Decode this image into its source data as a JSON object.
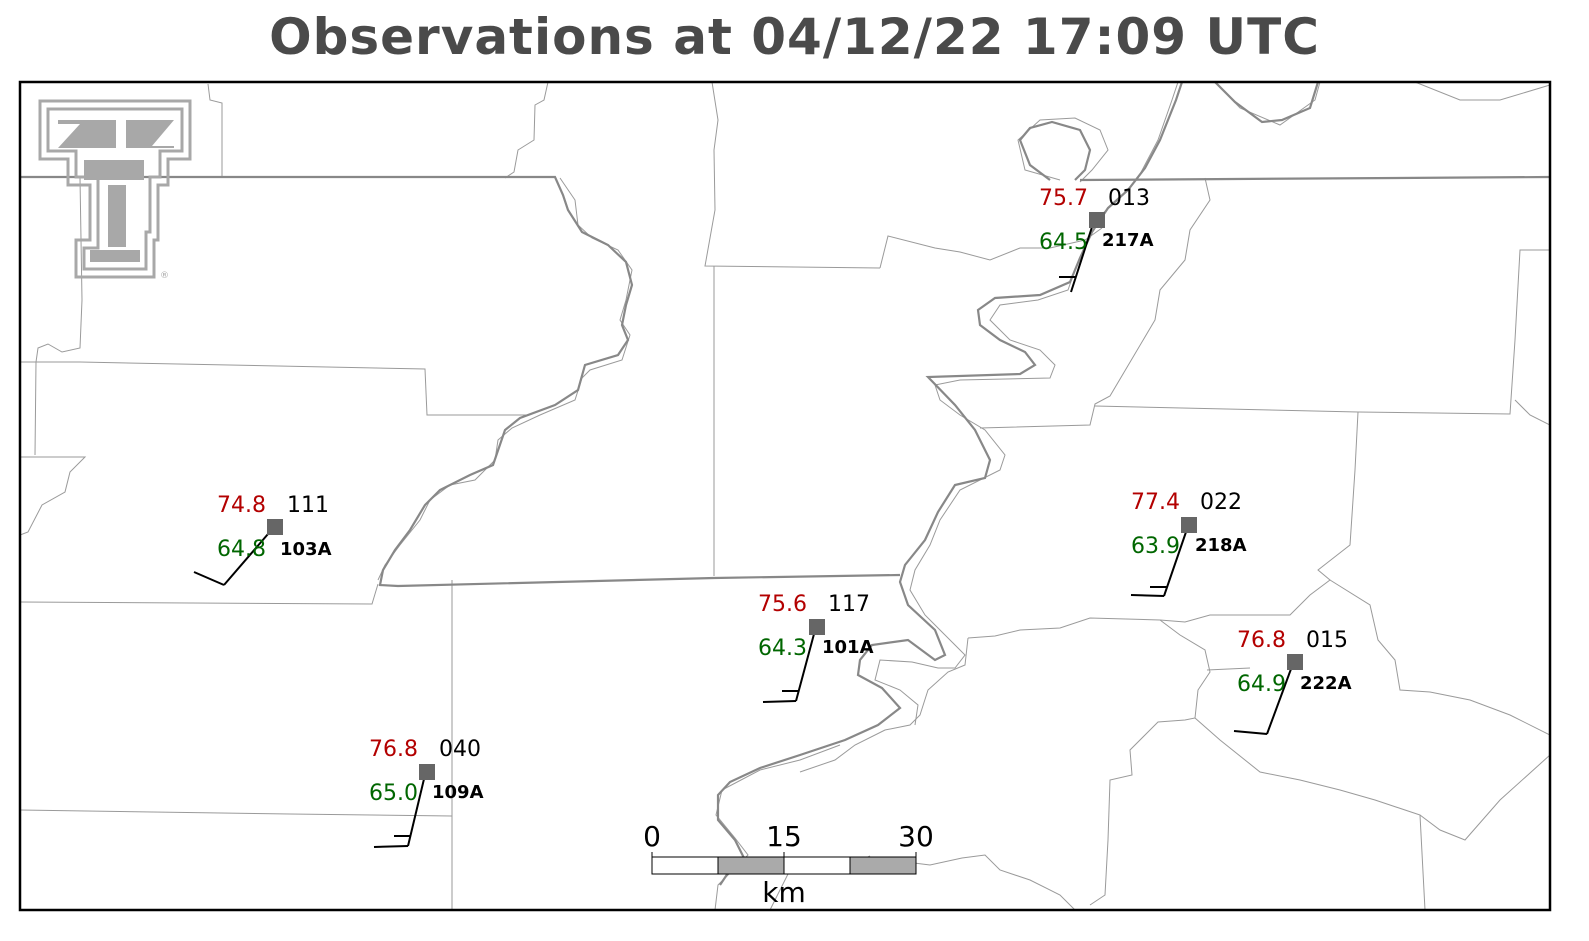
{
  "title": "Observations at 04/12/22 17:09 UTC",
  "colors": {
    "temperature": "#b30000",
    "dewpoint": "#006600",
    "station": "#666666",
    "border": "#000000",
    "title": "#4a4a4a",
    "counties": "#999999",
    "states": "#888888"
  },
  "logo": {
    "icon": "double-t-logo-icon",
    "mark": "®"
  },
  "scalebar": {
    "ticks": [
      "0",
      "15",
      "30"
    ],
    "unit": "km"
  },
  "stations": [
    {
      "id": "103A",
      "temp": "74.8",
      "dewpoint": "64.8",
      "pressure": "111"
    },
    {
      "id": "217A",
      "temp": "75.7",
      "dewpoint": "64.5",
      "pressure": "013"
    },
    {
      "id": "218A",
      "temp": "77.4",
      "dewpoint": "63.9",
      "pressure": "022"
    },
    {
      "id": "101A",
      "temp": "75.6",
      "dewpoint": "64.3",
      "pressure": "117"
    },
    {
      "id": "222A",
      "temp": "76.8",
      "dewpoint": "64.9",
      "pressure": "015"
    },
    {
      "id": "109A",
      "temp": "76.8",
      "dewpoint": "65.0",
      "pressure": "040"
    }
  ]
}
